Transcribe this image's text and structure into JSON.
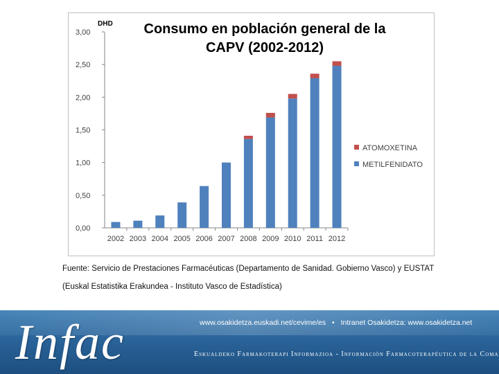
{
  "chart_data": {
    "type": "bar",
    "stacked": true,
    "title": "Consumo en población general de la CAPV (2002-2012)",
    "title_lines": [
      "Consumo en población general de la",
      "CAPV (2002-2012)"
    ],
    "ylabel": "DHD",
    "xlabel": "",
    "ylim": [
      0,
      3
    ],
    "yticks": [
      0,
      0.5,
      1,
      1.5,
      2,
      2.5,
      3
    ],
    "ytick_labels": [
      "0,00",
      "0,50",
      "1,00",
      "1,50",
      "2,00",
      "2,50",
      "3,00"
    ],
    "categories": [
      "2002",
      "2003",
      "2004",
      "2005",
      "2006",
      "2007",
      "2008",
      "2009",
      "2010",
      "2011",
      "2012"
    ],
    "series": [
      {
        "name": "METILFENIDATO",
        "color": "#4f81bd",
        "values": [
          0.09,
          0.11,
          0.19,
          0.39,
          0.64,
          1.0,
          1.36,
          1.69,
          1.98,
          2.29,
          2.48
        ]
      },
      {
        "name": "ATOMOXETINA",
        "color": "#c0504d",
        "values": [
          0,
          0,
          0,
          0,
          0,
          0,
          0.05,
          0.07,
          0.07,
          0.07,
          0.07
        ]
      }
    ],
    "legend_order": [
      "ATOMOXETINA",
      "METILFENIDATO"
    ],
    "legend_position": "right",
    "grid": false
  },
  "source": {
    "line1": "Fuente: Servicio de Prestaciones Farmacéuticas (Departamento de Sanidad. Gobierno Vasco) y EUSTAT",
    "line2": "(Euskal Estatistika Erakundea - Instituto Vasco de Estadística)"
  },
  "footer": {
    "logo": "Infac",
    "link1": "www.osakidetza.euskadi.net/cevime/es",
    "separator": "•",
    "link2": "Intranet Osakidetza: www.osakidetza.net",
    "tagline": "Eskualdeko Farmakoterapi Informazioa - Información Farmacoterapéutica de la Comarca"
  }
}
